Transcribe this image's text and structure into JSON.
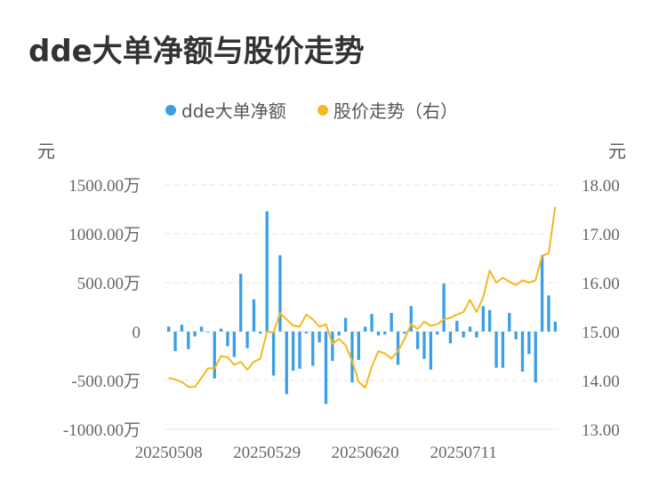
{
  "title": "dde大单净额与股价走势",
  "colors": {
    "bar": "#3a9fe6",
    "line": "#f5b720",
    "grid": "#e4e4e4",
    "text": "#666666"
  },
  "chart_data": {
    "type": "bar+line",
    "title": "dde大单净额与股价走势",
    "legend": {
      "placement": "top-center",
      "items": [
        "dde大单净额",
        "股价走势（右）"
      ]
    },
    "left_unit": "元",
    "right_unit": "元",
    "left_axis": {
      "min": -1000,
      "max": 1500,
      "ticks": [
        1500,
        1000,
        500,
        0,
        -500,
        -1000
      ],
      "tick_labels": [
        "1500.00万",
        "1000.00万",
        "500.00万",
        "0",
        "-500.00万",
        "-1000.00万"
      ]
    },
    "right_axis": {
      "min": 13,
      "max": 18,
      "ticks": [
        18,
        17,
        16,
        15,
        14,
        13
      ],
      "tick_labels": [
        "18.00",
        "17.00",
        "16.00",
        "15.00",
        "14.00",
        "13.00"
      ]
    },
    "x_tick_labels": [
      {
        "index": 0,
        "label": "20250508"
      },
      {
        "index": 15,
        "label": "20250529"
      },
      {
        "index": 30,
        "label": "20250620"
      },
      {
        "index": 45,
        "label": "20250711"
      }
    ],
    "grid": true,
    "series": [
      {
        "name": "dde大单净额",
        "axis": "left",
        "type": "bar",
        "values": [
          50,
          -200,
          70,
          -180,
          -50,
          50,
          0,
          -480,
          30,
          -150,
          -260,
          590,
          -170,
          330,
          -20,
          1230,
          -450,
          780,
          -640,
          -400,
          -380,
          -20,
          -350,
          -110,
          -740,
          -300,
          -40,
          140,
          -520,
          -290,
          50,
          180,
          -40,
          -30,
          190,
          -340,
          -20,
          260,
          -180,
          -280,
          -390,
          -30,
          490,
          -120,
          110,
          -60,
          50,
          -60,
          260,
          220,
          -370,
          -370,
          190,
          -80,
          -410,
          -230,
          -520,
          780,
          370,
          100
        ]
      },
      {
        "name": "股价走势（右）",
        "axis": "right",
        "type": "line",
        "values": [
          14.05,
          14.02,
          13.97,
          13.87,
          13.87,
          14.05,
          14.25,
          14.25,
          14.5,
          14.47,
          14.32,
          14.38,
          14.22,
          14.38,
          14.45,
          15.0,
          14.98,
          15.38,
          15.25,
          15.12,
          15.1,
          15.35,
          15.25,
          15.1,
          15.15,
          14.75,
          14.85,
          14.72,
          14.4,
          13.97,
          13.85,
          14.28,
          14.6,
          14.55,
          14.45,
          14.6,
          14.85,
          15.15,
          15.05,
          15.2,
          15.12,
          15.15,
          15.25,
          15.28,
          15.35,
          15.4,
          15.65,
          15.4,
          15.7,
          16.25,
          16.0,
          16.1,
          16.02,
          15.95,
          16.05,
          16.0,
          16.05,
          16.55,
          16.6,
          17.55
        ]
      }
    ]
  }
}
